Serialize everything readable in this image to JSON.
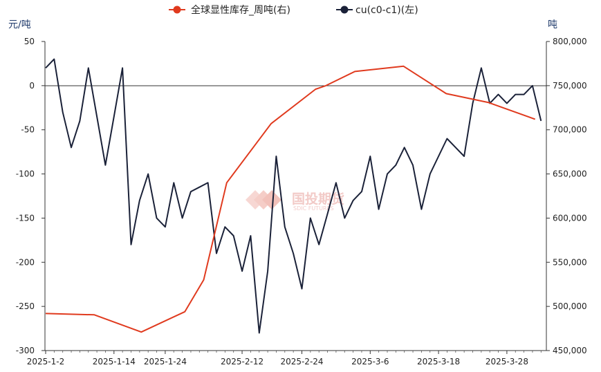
{
  "chart_data": {
    "type": "line",
    "left_unit": "元/吨",
    "right_unit": "吨",
    "legend": [
      {
        "name": "全球显性库存_周吨(右)",
        "color": "#e03a1e",
        "axis": "right"
      },
      {
        "name": "cu(c0-c1)(左)",
        "color": "#1a2138",
        "axis": "left"
      }
    ],
    "watermark": {
      "cn": "国投期货",
      "en": "SDIC FUTURES"
    },
    "x_labels": [
      "2025-1-2",
      "2025-1-14",
      "2025-1-24",
      "2025-2-12",
      "2025-2-24",
      "2025-3-6",
      "2025-3-18",
      "2025-3-28"
    ],
    "y_left": {
      "range": [
        -300,
        50
      ],
      "ticks": [
        "50",
        "0",
        "-50",
        "-100",
        "-150",
        "-200",
        "-250",
        "-300"
      ]
    },
    "y_right": {
      "range": [
        450000,
        800000
      ],
      "ticks": [
        "800,000",
        "750,000",
        "700,000",
        "650,000",
        "600,000",
        "550,000",
        "500,000",
        "450,000"
      ]
    },
    "series": [
      {
        "name": "cu(c0-c1)(左)",
        "axis": "left",
        "color": "#1a2138",
        "values": [
          20,
          30,
          -30,
          -70,
          -40,
          20,
          -35,
          -90,
          -35,
          20,
          -180,
          -130,
          -100,
          -150,
          -160,
          -110,
          -150,
          -120,
          -115,
          -110,
          -190,
          -160,
          -170,
          -210,
          -170,
          -280,
          -210,
          -80,
          -160,
          -190,
          -230,
          -150,
          -180,
          -145,
          -110,
          -150,
          -130,
          -120,
          -80,
          -140,
          -100,
          -90,
          -70,
          -90,
          -140,
          -100,
          -80,
          -60,
          -70,
          -80,
          -20,
          20,
          -20,
          -10,
          -20,
          -10,
          -10,
          0,
          -40
        ]
      },
      {
        "name": "全球显性库存_周吨(右)",
        "axis": "right",
        "color": "#e03a1e",
        "points": [
          [
            0,
            492000
          ],
          [
            5.7,
            490500
          ],
          [
            11.2,
            471000
          ],
          [
            16.3,
            494000
          ],
          [
            18.5,
            530000
          ],
          [
            21.2,
            640000
          ],
          [
            26.4,
            707000
          ],
          [
            31.6,
            746000
          ],
          [
            32.8,
            750000
          ],
          [
            36.2,
            766000
          ],
          [
            41.9,
            772000
          ],
          [
            46.9,
            741000
          ],
          [
            51.8,
            731000
          ],
          [
            57.3,
            712000
          ]
        ]
      }
    ]
  }
}
